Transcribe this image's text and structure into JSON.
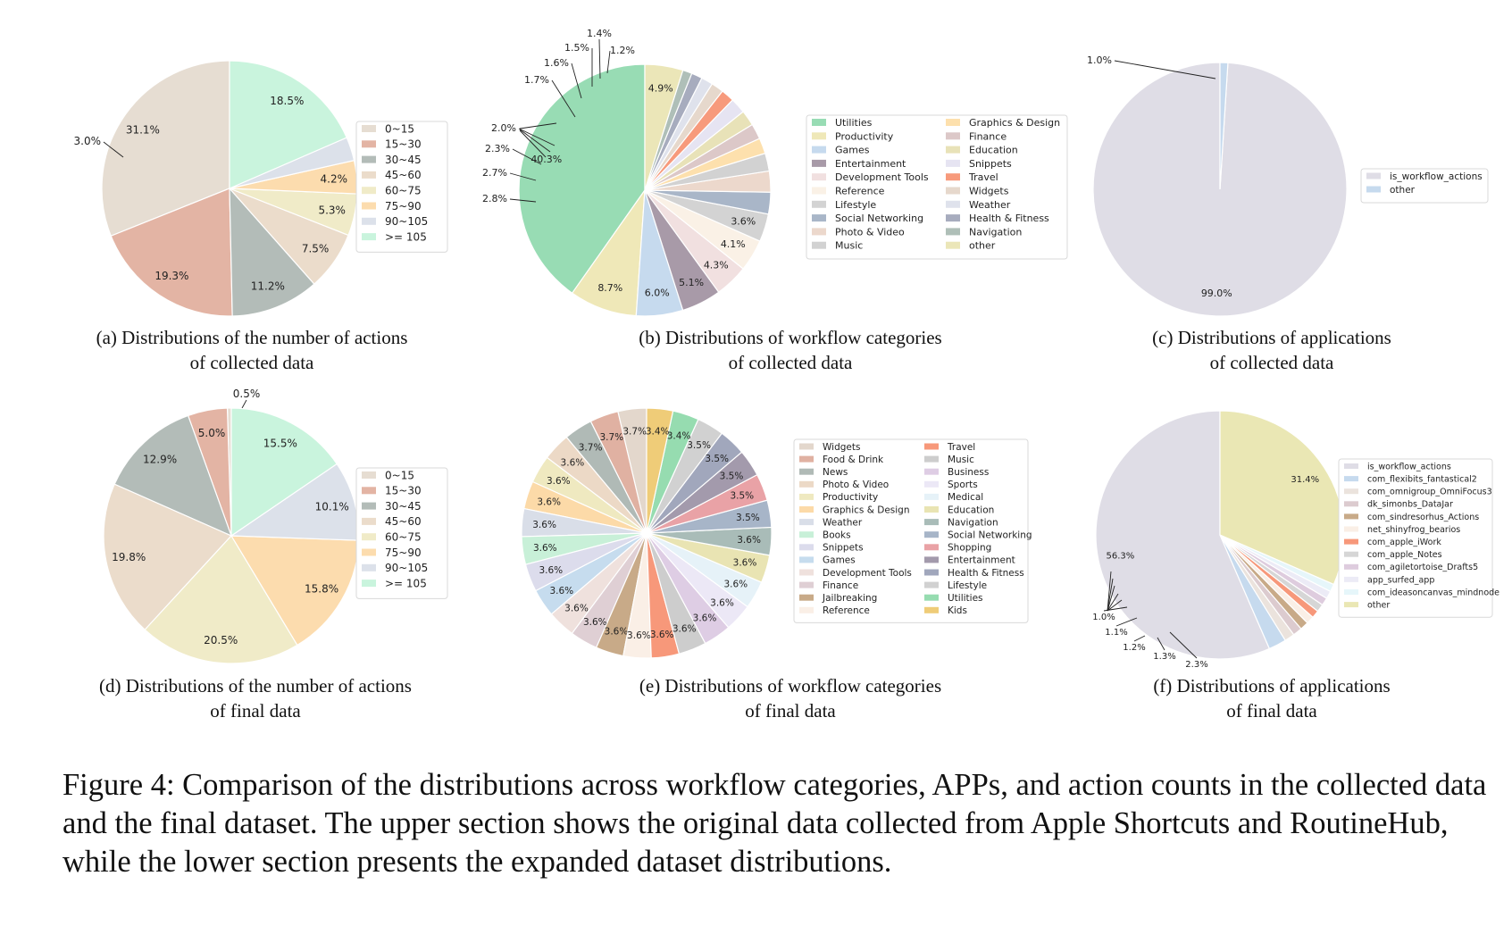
{
  "chart_data": [
    {
      "type": "pie",
      "caption": [
        "(a) Distributions of the number of actions",
        "of collected data"
      ],
      "categories": [
        "0~15",
        "15~30",
        "30~45",
        "45~60",
        "60~75",
        "75~90",
        "90~105",
        ">= 105"
      ],
      "values": [
        31.1,
        19.3,
        11.2,
        7.5,
        5.3,
        4.2,
        3.0,
        18.5
      ],
      "labels": [
        "31.1%",
        "19.3%",
        "11.2%",
        "7.5%",
        "5.3%",
        "4.2%",
        "3.0%",
        "18.5%"
      ],
      "colors": [
        "#e6ddd2",
        "#e3b4a4",
        "#b3bcb8",
        "#ebdccb",
        "#f0ebc8",
        "#fcdcae",
        "#dce1ea",
        "#c9f4dd"
      ],
      "legend": "right"
    },
    {
      "type": "pie",
      "caption": [
        "(b) Distributions of workflow categories",
        "of collected data"
      ],
      "categories": [
        "Utilities",
        "Productivity",
        "Games",
        "Entertainment",
        "Development Tools",
        "Reference",
        "Lifestyle",
        "Social Networking",
        "Photo & Video",
        "Music",
        "Graphics & Design",
        "Finance",
        "Education",
        "Snippets",
        "Travel",
        "Widgets",
        "Weather",
        "Health & Fitness",
        "Navigation",
        "other"
      ],
      "values": [
        40.3,
        8.7,
        6.0,
        5.1,
        4.3,
        4.1,
        3.6,
        2.8,
        2.7,
        2.3,
        2.0,
        2.0,
        2.0,
        2.0,
        1.7,
        1.6,
        1.5,
        1.4,
        1.2,
        4.9
      ],
      "labels": [
        "40.3%",
        "8.7%",
        "6.0%",
        "5.1%",
        "4.3%",
        "4.1%",
        "3.6%",
        "2.8%",
        "2.7%",
        "2.3%",
        "2.0%",
        "",
        "",
        "",
        "1.7%",
        "1.6%",
        "1.5%",
        "1.4%",
        "1.2%",
        "4.9%"
      ],
      "colors": [
        "#98dcb4",
        "#efe8b8",
        "#c6daee",
        "#a89aa8",
        "#f1e0e0",
        "#faf1e6",
        "#d3d3d3",
        "#a9b6c8",
        "#ecd8cc",
        "#d2d2d2",
        "#fde0ad",
        "#dcc8c8",
        "#e8e2b8",
        "#e6e4f2",
        "#f79a7c",
        "#e6d8cc",
        "#dfe2ec",
        "#a7acbe",
        "#afbfb8",
        "#ebe6b8"
      ],
      "legend": "right"
    },
    {
      "type": "pie",
      "caption": [
        "(c) Distributions of applications",
        "of collected data"
      ],
      "categories": [
        "is_workflow_actions",
        "other"
      ],
      "values": [
        99.0,
        1.0
      ],
      "labels": [
        "99.0%",
        "1.0%"
      ],
      "colors": [
        "#dfdde6",
        "#c6daee"
      ],
      "legend": "right"
    },
    {
      "type": "pie",
      "caption": [
        "(d) Distributions of the number of actions",
        "of final data"
      ],
      "categories": [
        "0~15",
        "15~30",
        "30~45",
        "45~60",
        "60~75",
        "75~90",
        "90~105",
        ">= 105"
      ],
      "values": [
        0.5,
        5.0,
        12.9,
        19.8,
        20.5,
        15.8,
        10.1,
        15.5
      ],
      "labels": [
        "0.5%",
        "5.0%",
        "12.9%",
        "19.8%",
        "20.5%",
        "15.8%",
        "10.1%",
        "15.5%"
      ],
      "colors": [
        "#e6ddd2",
        "#e3b4a4",
        "#b3bcb8",
        "#ebdccb",
        "#f0ebc8",
        "#fcdcae",
        "#dce1ea",
        "#c9f4dd"
      ],
      "legend": "right"
    },
    {
      "type": "pie",
      "caption": [
        "(e) Distributions of workflow categories",
        "of final data"
      ],
      "categories": [
        "Widgets",
        "Food & Drink",
        "News",
        "Photo & Video",
        "Productivity",
        "Graphics & Design",
        "Weather",
        "Books",
        "Snippets",
        "Games",
        "Development Tools",
        "Finance",
        "Jailbreaking",
        "Reference",
        "Travel",
        "Music",
        "Business",
        "Sports",
        "Medical",
        "Education",
        "Navigation",
        "Social Networking",
        "Shopping",
        "Entertainment",
        "Health & Fitness",
        "Lifestyle",
        "Utilities",
        "Kids"
      ],
      "values": [
        3.7,
        3.7,
        3.7,
        3.6,
        3.6,
        3.6,
        3.6,
        3.6,
        3.6,
        3.6,
        3.6,
        3.6,
        3.6,
        3.6,
        3.6,
        3.6,
        3.6,
        3.6,
        3.6,
        3.6,
        3.6,
        3.5,
        3.5,
        3.5,
        3.5,
        3.5,
        3.4,
        3.4
      ],
      "labels": [
        "3.7%",
        "3.7%",
        "3.7%",
        "3.6%",
        "3.6%",
        "3.6%",
        "3.6%",
        "3.6%",
        "3.6%",
        "3.6%",
        "3.6%",
        "3.6%",
        "3.6%",
        "3.6%",
        "3.6%",
        "3.6%",
        "3.6%",
        "3.6%",
        "3.6%",
        "3.6%",
        "3.6%",
        "3.5%",
        "3.5%",
        "3.5%",
        "3.5%",
        "3.5%",
        "3.4%",
        "3.4%"
      ],
      "colors": [
        "#e3d7cc",
        "#e0b1a2",
        "#b0bab6",
        "#ecd9c6",
        "#efe9c0",
        "#fcdaa8",
        "#d9dee8",
        "#c8f0d8",
        "#dcdcec",
        "#c6dcee",
        "#efe1dd",
        "#dfcfd4",
        "#c8aa88",
        "#faefe6",
        "#f7987a",
        "#cdcdcd",
        "#decde4",
        "#ece8f6",
        "#e6f2f8",
        "#e9e4b3",
        "#a9bcb8",
        "#a7b5c8",
        "#e9a2a6",
        "#a39aac",
        "#a1a7bc",
        "#d1d1d1",
        "#96dcb0",
        "#efcc78"
      ],
      "legend": "right"
    },
    {
      "type": "pie",
      "caption": [
        "(f) Distributions of applications",
        "of final data"
      ],
      "categories": [
        "is_workflow_actions",
        "com_flexibits_fantastical2",
        "com_omnigroup_OmniFocus3",
        "dk_simonbs_DataJar",
        "com_sindresorhus_Actions",
        "net_shinyfrog_bearios",
        "com_apple_iWork",
        "com_apple_Notes",
        "com_agiletortoise_Drafts5",
        "app_surfed_app",
        "com_ideasoncanvas_mindnode",
        "other"
      ],
      "values": [
        56.3,
        2.3,
        1.3,
        1.2,
        1.1,
        1.0,
        1.0,
        1.0,
        1.0,
        1.0,
        1.0,
        31.4
      ],
      "labels": [
        "56.3%",
        "2.3%",
        "1.3%",
        "1.2%",
        "1.1%",
        "1.0%",
        "",
        "",
        "",
        "",
        "",
        "31.4%"
      ],
      "colors": [
        "#dfdde6",
        "#c6daee",
        "#ebe3dd",
        "#dccbcf",
        "#c8aa88",
        "#faefe6",
        "#f7987a",
        "#d6d6d6",
        "#deccde",
        "#ecebf6",
        "#e6f6fa",
        "#eae7b4"
      ],
      "legend": "right"
    }
  ],
  "figure_caption": "Figure 4: Comparison of the distributions across workflow categories, APPs, and action counts in the collected data and the final dataset. The upper section shows the original data collected from Apple Shortcuts and RoutineHub, while the lower section presents the expanded dataset distributions."
}
